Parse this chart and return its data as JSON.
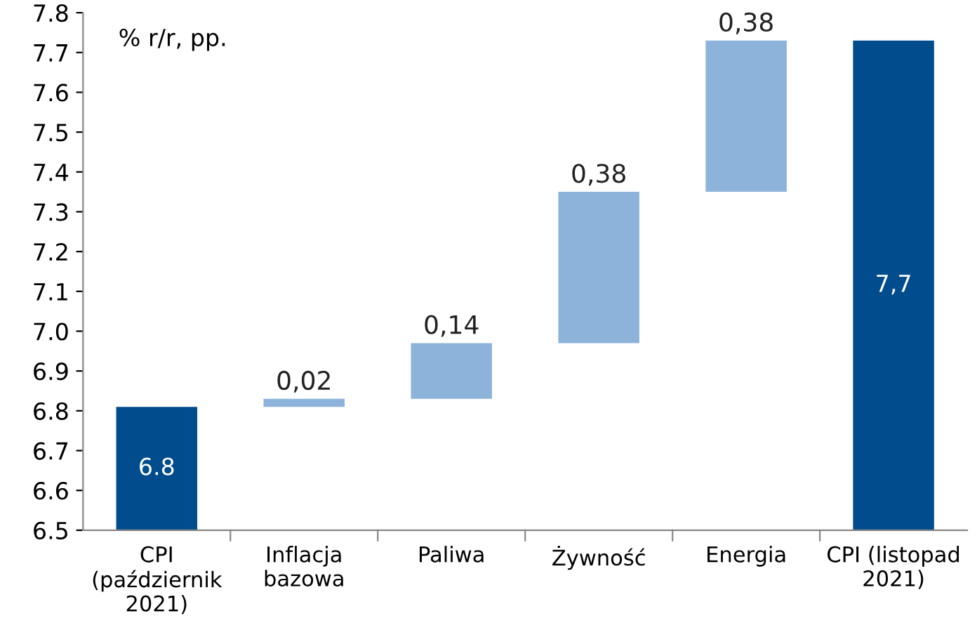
{
  "chart_data": {
    "type": "bar",
    "categories": [
      "CPI\n(październik\n2021)",
      "Inflacja\nbazowa",
      "Paliwa",
      "Żywność",
      "Energia",
      "CPI (listopad\n2021)"
    ],
    "values": [
      6.81,
      0.02,
      0.14,
      0.38,
      0.38,
      7.73
    ],
    "base": [
      0,
      6.81,
      6.83,
      6.97,
      7.35,
      0
    ],
    "colors": [
      "#004c8c",
      "#8db3da",
      "#8db3da",
      "#8db3da",
      "#8db3da",
      "#004c8c"
    ],
    "value_labels": [
      "6.8",
      "0,02",
      "0,14",
      "0,38",
      "0,38",
      "7,7"
    ],
    "ylim": [
      6.5,
      7.8
    ],
    "yticks": [
      6.5,
      6.6,
      6.7,
      6.8,
      6.9,
      {
        "value": 7,
        "label": "7.0"
      },
      7.1,
      7.2,
      7.3,
      7.4,
      7.5,
      7.6,
      7.7,
      7.8
    ],
    "annotations": [
      "% r/r, pp."
    ],
    "grid": false
  }
}
